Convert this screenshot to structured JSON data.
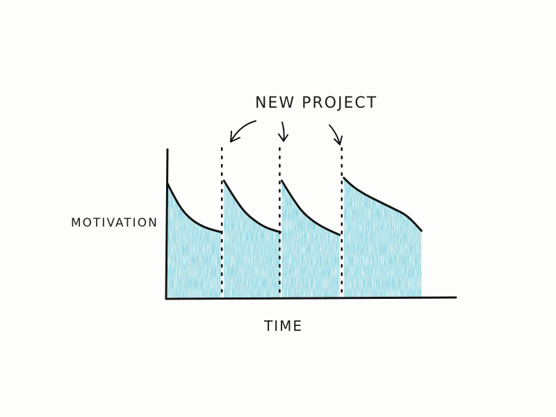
{
  "chart_data": {
    "type": "area",
    "title": "",
    "xlabel": "TIME",
    "ylabel": "MOTIVATION",
    "annotation": "NEW PROJECT",
    "x_ticks": [],
    "y_ticks": [],
    "grid": false,
    "legend": "none",
    "y_range": [
      0,
      100
    ],
    "x_range": [
      0,
      10
    ],
    "series": [
      {
        "x": [
          0.0,
          0.12,
          0.5,
          0.9,
          1.35,
          1.9,
          2.0,
          2.3,
          2.7,
          3.1,
          3.5,
          4.0,
          4.05,
          4.35,
          4.75,
          5.15,
          5.55,
          6.1,
          6.25,
          6.55,
          7.0,
          7.5,
          8.0,
          8.5,
          9.0
        ],
        "y": [
          82,
          77,
          63,
          55,
          50,
          47,
          84,
          74,
          62,
          55,
          50,
          47,
          84,
          74,
          62,
          55,
          50,
          45,
          86,
          80,
          74,
          69,
          64,
          59,
          48
        ]
      }
    ],
    "fill_color": "#63c6d6",
    "line_color": "#111111",
    "project_starts": [
      2.0,
      4.05,
      6.25
    ]
  }
}
